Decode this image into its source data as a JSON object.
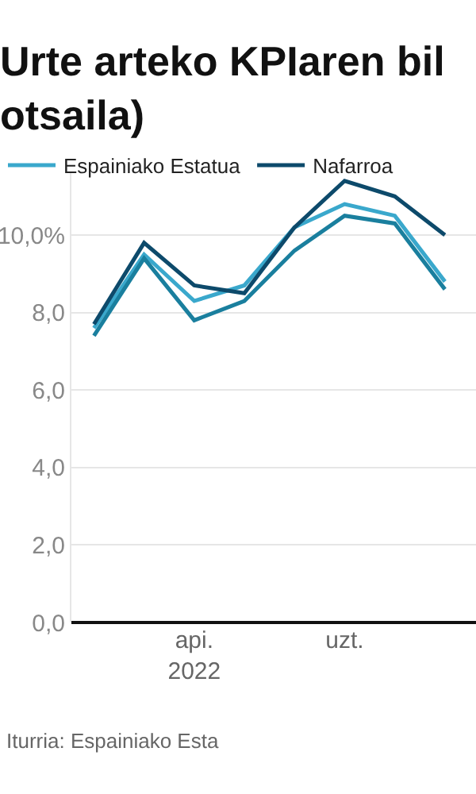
{
  "chart_data": {
    "type": "line",
    "title": "Urte arteko KPIaren bil\notsaila)",
    "categories": [
      null,
      null,
      "api.\n2022",
      null,
      null,
      "uzt.",
      null,
      null
    ],
    "series": [
      {
        "name": "Espainiako Estatua",
        "color": "#3aa8cc",
        "values": [
          7.6,
          9.5,
          8.3,
          8.7,
          10.2,
          10.8,
          10.5,
          8.8
        ]
      },
      {
        "name": "Nafarroa",
        "color": "#0d4a6b",
        "values": [
          7.7,
          9.8,
          8.7,
          8.5,
          10.2,
          11.4,
          11.0,
          10.0
        ]
      },
      {
        "color": "#1a7f9e",
        "values": [
          7.4,
          9.4,
          7.8,
          8.3,
          9.6,
          10.5,
          10.3,
          8.6
        ]
      }
    ],
    "yticks": [
      {
        "value": 0,
        "label": "0,0"
      },
      {
        "value": 2,
        "label": "2,0"
      },
      {
        "value": 4,
        "label": "4,0"
      },
      {
        "value": 6,
        "label": "6,0"
      },
      {
        "value": 8,
        "label": "8,0"
      },
      {
        "value": 10,
        "label": "10,0%"
      }
    ],
    "ylim": [
      0,
      11.6
    ],
    "grid": "y",
    "legend": "top left",
    "marker": "none",
    "line_style": "solid",
    "annotations": [
      "Iturria: Espainiako Esta"
    ]
  }
}
